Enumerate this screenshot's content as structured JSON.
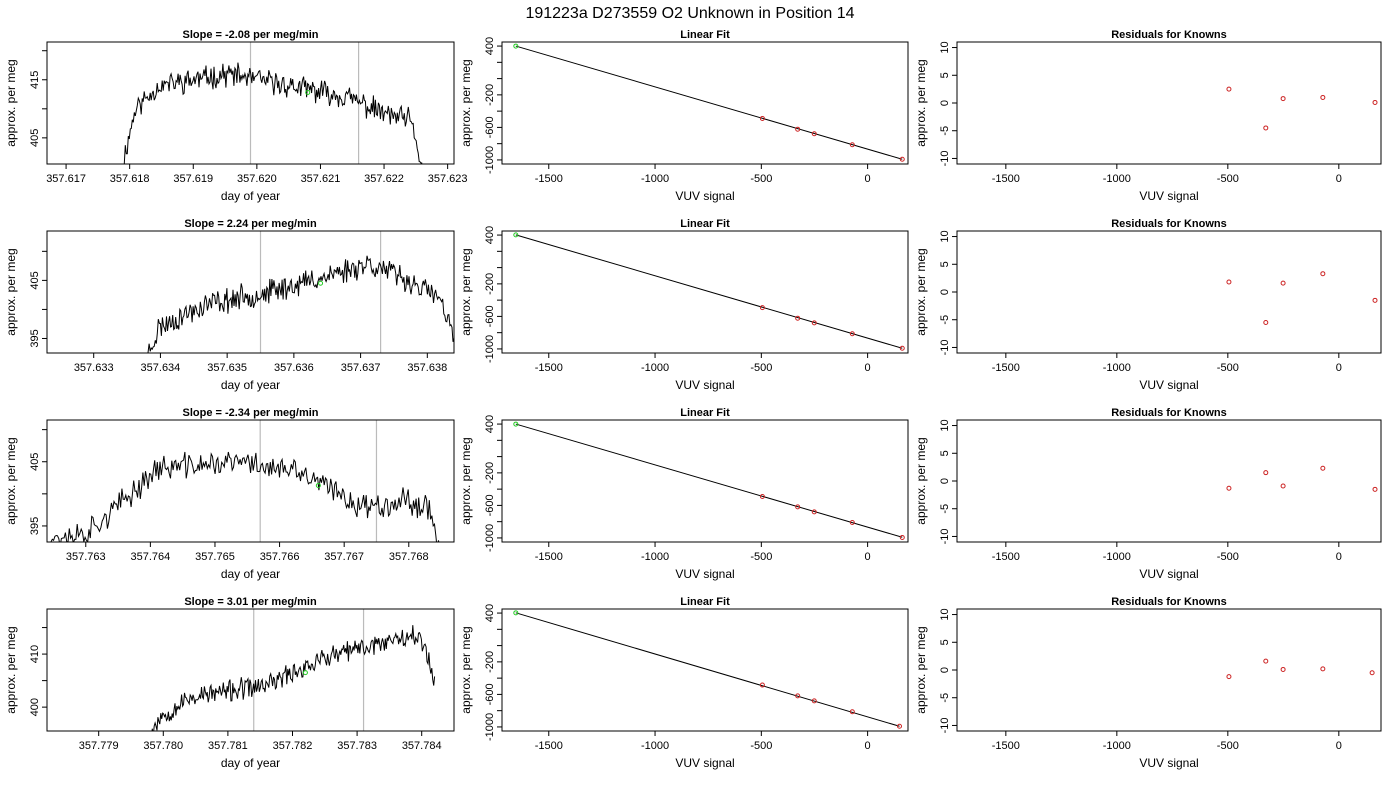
{
  "page_title": "191223a     D273559   O2 Unknown in Position  14",
  "colors": {
    "timeseries_line": "#000000",
    "cursor_lines": "#bbbbbb",
    "known_points": "#cc2222",
    "unknown_point": "#22cc22",
    "fit_line": "#000000"
  },
  "chart_data": [
    {
      "type": "line",
      "title": "Slope =  -2.08  per meg/min",
      "xlabel": "day of year",
      "ylabel": "approx. per meg",
      "xlim": [
        357.6167,
        357.6231
      ],
      "ylim": [
        400.5,
        421.5
      ],
      "xticks": [
        357.617,
        357.618,
        357.619,
        357.62,
        357.621,
        357.622,
        357.623
      ],
      "xtick_labels": [
        "357.617",
        "357.618",
        "357.619",
        "357.620",
        "357.621",
        "357.622",
        "357.623"
      ],
      "yticks": [
        405,
        410,
        415,
        420
      ],
      "ytick_labels": [
        "405",
        "",
        "415",
        ""
      ],
      "vlines": [
        357.6199,
        357.6216
      ],
      "unknown_point": {
        "x": 357.6208,
        "y": 412.8
      },
      "series": [
        {
          "x_start": 357.6179,
          "x_end": 357.6226,
          "profile": [
            [
              0,
              401
            ],
            [
              0.04,
              410
            ],
            [
              0.12,
              414
            ],
            [
              0.35,
              416
            ],
            [
              0.55,
              414
            ],
            [
              0.75,
              412
            ],
            [
              0.88,
              409
            ],
            [
              0.96,
              408
            ],
            [
              1,
              400
            ]
          ],
          "noise": 1.6,
          "seed": 11
        }
      ]
    },
    {
      "type": "scatter",
      "title": "Linear Fit",
      "xlabel": "VUV signal",
      "ylabel": "approx. per meg",
      "xlim": [
        -1720,
        190
      ],
      "ylim": [
        -1050,
        450
      ],
      "xticks": [
        -1500,
        -1000,
        -500,
        0
      ],
      "xtick_labels": [
        "-1500",
        "-1000",
        "-500",
        "0"
      ],
      "yticks": [
        -1000,
        -800,
        -600,
        -400,
        -200,
        0,
        200,
        400
      ],
      "ytick_labels": [
        "-1000",
        "",
        "-600",
        "",
        "-200",
        "",
        "",
        "400"
      ],
      "fit_line": [
        [
          -1655,
          400
        ],
        [
          163,
          -992
        ]
      ],
      "knowns": [
        [
          -495,
          -490
        ],
        [
          -329,
          -622
        ],
        [
          -251,
          -678
        ],
        [
          -72,
          -813
        ],
        [
          163,
          -992
        ]
      ],
      "unknown_point": {
        "x": -1655,
        "y": 400
      }
    },
    {
      "type": "scatter",
      "title": "Residuals for Knowns",
      "xlabel": "VUV signal",
      "ylabel": "approx. per meg",
      "xlim": [
        -1720,
        190
      ],
      "ylim": [
        -11,
        11
      ],
      "xticks": [
        -1500,
        -1000,
        -500,
        0
      ],
      "xtick_labels": [
        "-1500",
        "-1000",
        "-500",
        "0"
      ],
      "yticks": [
        -10,
        -5,
        0,
        5,
        10
      ],
      "ytick_labels": [
        "-10",
        "-5",
        "0",
        "5",
        "10"
      ],
      "residuals": [
        [
          -495,
          2.5
        ],
        [
          -329,
          -4.5
        ],
        [
          -251,
          0.8
        ],
        [
          -72,
          1.0
        ],
        [
          163,
          0.1
        ]
      ]
    },
    {
      "type": "line",
      "title": "Slope =  2.24  per meg/min",
      "xlabel": "day of year",
      "ylabel": "approx. per meg",
      "xlim": [
        357.6323,
        357.6384
      ],
      "ylim": [
        392.5,
        413.5
      ],
      "xticks": [
        357.633,
        357.634,
        357.635,
        357.636,
        357.637,
        357.638
      ],
      "xtick_labels": [
        "357.633",
        "357.634",
        "357.635",
        "357.636",
        "357.637",
        "357.638"
      ],
      "yticks": [
        395,
        400,
        405,
        410
      ],
      "ytick_labels": [
        "395",
        "",
        "405",
        ""
      ],
      "vlines": [
        357.6355,
        357.6373
      ],
      "unknown_point": {
        "x": 357.6364,
        "y": 404.5
      },
      "series": [
        {
          "x_start": 357.6338,
          "x_end": 357.6384,
          "profile": [
            [
              0,
              392
            ],
            [
              0.04,
              397
            ],
            [
              0.2,
              401
            ],
            [
              0.4,
              403
            ],
            [
              0.6,
              406
            ],
            [
              0.72,
              408
            ],
            [
              0.85,
              405
            ],
            [
              0.95,
              402
            ],
            [
              1,
              395
            ]
          ],
          "noise": 1.7,
          "seed": 23
        }
      ]
    },
    {
      "type": "scatter",
      "title": "Linear Fit",
      "xlabel": "VUV signal",
      "ylabel": "approx. per meg",
      "xlim": [
        -1720,
        190
      ],
      "ylim": [
        -1050,
        450
      ],
      "xticks": [
        -1500,
        -1000,
        -500,
        0
      ],
      "xtick_labels": [
        "-1500",
        "-1000",
        "-500",
        "0"
      ],
      "yticks": [
        -1000,
        -800,
        -600,
        -400,
        -200,
        0,
        200,
        400
      ],
      "ytick_labels": [
        "-1000",
        "",
        "-600",
        "",
        "-200",
        "",
        "",
        "400"
      ],
      "fit_line": [
        [
          -1655,
          402
        ],
        [
          163,
          -992
        ]
      ],
      "knowns": [
        [
          -495,
          -492
        ],
        [
          -329,
          -622
        ],
        [
          -251,
          -680
        ],
        [
          -72,
          -813
        ],
        [
          163,
          -992
        ]
      ],
      "unknown_point": {
        "x": -1655,
        "y": 402
      }
    },
    {
      "type": "scatter",
      "title": "Residuals for Knowns",
      "xlabel": "VUV signal",
      "ylabel": "approx. per meg",
      "xlim": [
        -1720,
        190
      ],
      "ylim": [
        -11,
        11
      ],
      "xticks": [
        -1500,
        -1000,
        -500,
        0
      ],
      "xtick_labels": [
        "-1500",
        "-1000",
        "-500",
        "0"
      ],
      "yticks": [
        -10,
        -5,
        0,
        5,
        10
      ],
      "ytick_labels": [
        "-10",
        "-5",
        "0",
        "5",
        "10"
      ],
      "residuals": [
        [
          -495,
          1.8
        ],
        [
          -329,
          -5.5
        ],
        [
          -251,
          1.6
        ],
        [
          -72,
          3.3
        ],
        [
          163,
          -1.5
        ]
      ]
    },
    {
      "type": "line",
      "title": "Slope =  -2.34  per meg/min",
      "xlabel": "day of year",
      "ylabel": "approx. per meg",
      "xlim": [
        357.7624,
        357.7687
      ],
      "ylim": [
        392.5,
        411.5
      ],
      "xticks": [
        357.763,
        357.764,
        357.765,
        357.766,
        357.767,
        357.768
      ],
      "xtick_labels": [
        "357.763",
        "357.764",
        "357.765",
        "357.766",
        "357.767",
        "357.768"
      ],
      "yticks": [
        395,
        400,
        405,
        410
      ],
      "ytick_labels": [
        "395",
        "",
        "405",
        ""
      ],
      "vlines": [
        357.7657,
        357.7675
      ],
      "unknown_point": {
        "x": 357.7666,
        "y": 401.3
      },
      "series": [
        {
          "x_start": 357.7624,
          "x_end": 357.7685,
          "profile": [
            [
              0,
              393
            ],
            [
              0.1,
              394
            ],
            [
              0.18,
              398
            ],
            [
              0.28,
              404
            ],
            [
              0.5,
              405
            ],
            [
              0.65,
              403
            ],
            [
              0.8,
              398
            ],
            [
              0.9,
              399
            ],
            [
              0.97,
              398
            ],
            [
              1,
              391
            ]
          ],
          "noise": 1.6,
          "seed": 37
        }
      ]
    },
    {
      "type": "scatter",
      "title": "Linear Fit",
      "xlabel": "VUV signal",
      "ylabel": "approx. per meg",
      "xlim": [
        -1720,
        190
      ],
      "ylim": [
        -1050,
        450
      ],
      "xticks": [
        -1500,
        -1000,
        -500,
        0
      ],
      "xtick_labels": [
        "-1500",
        "-1000",
        "-500",
        "0"
      ],
      "yticks": [
        -1000,
        -800,
        -600,
        -400,
        -200,
        0,
        200,
        400
      ],
      "ytick_labels": [
        "-1000",
        "",
        "-600",
        "",
        "-200",
        "",
        "",
        "400"
      ],
      "fit_line": [
        [
          -1655,
          400
        ],
        [
          163,
          -992
        ]
      ],
      "knowns": [
        [
          -495,
          -491
        ],
        [
          -329,
          -618
        ],
        [
          -251,
          -680
        ],
        [
          -72,
          -810
        ],
        [
          163,
          -994
        ]
      ],
      "unknown_point": {
        "x": -1655,
        "y": 400
      }
    },
    {
      "type": "scatter",
      "title": "Residuals for Knowns",
      "xlabel": "VUV signal",
      "ylabel": "approx. per meg",
      "xlim": [
        -1720,
        190
      ],
      "ylim": [
        -11,
        11
      ],
      "xticks": [
        -1500,
        -1000,
        -500,
        0
      ],
      "xtick_labels": [
        "-1500",
        "-1000",
        "-500",
        "0"
      ],
      "yticks": [
        -10,
        -5,
        0,
        5,
        10
      ],
      "ytick_labels": [
        "-10",
        "-5",
        "0",
        "5",
        "10"
      ],
      "residuals": [
        [
          -495,
          -1.3
        ],
        [
          -329,
          1.5
        ],
        [
          -251,
          -0.9
        ],
        [
          -72,
          2.3
        ],
        [
          163,
          -1.5
        ]
      ]
    },
    {
      "type": "line",
      "title": "Slope =  3.01  per meg/min",
      "xlabel": "day of year",
      "ylabel": "approx. per meg",
      "xlim": [
        357.7782,
        357.7845
      ],
      "ylim": [
        395.5,
        418.5
      ],
      "xticks": [
        357.779,
        357.78,
        357.781,
        357.782,
        357.783,
        357.784
      ],
      "xtick_labels": [
        "357.779",
        "357.780",
        "357.781",
        "357.782",
        "357.783",
        "357.784"
      ],
      "yticks": [
        400,
        405,
        410,
        415
      ],
      "ytick_labels": [
        "400",
        "",
        "410",
        ""
      ],
      "vlines": [
        357.7814,
        357.7831
      ],
      "unknown_point": {
        "x": 357.7822,
        "y": 406.5
      },
      "series": [
        {
          "x_start": 357.7798,
          "x_end": 357.7842,
          "profile": [
            [
              0,
              395
            ],
            [
              0.03,
              398
            ],
            [
              0.15,
              402
            ],
            [
              0.4,
              404
            ],
            [
              0.6,
              409
            ],
            [
              0.8,
              412
            ],
            [
              0.92,
              414
            ],
            [
              0.97,
              411
            ],
            [
              1,
              405
            ]
          ],
          "noise": 1.6,
          "seed": 53
        }
      ]
    },
    {
      "type": "scatter",
      "title": "Linear Fit",
      "xlabel": "VUV signal",
      "ylabel": "approx. per meg",
      "xlim": [
        -1720,
        190
      ],
      "ylim": [
        -1050,
        450
      ],
      "xticks": [
        -1500,
        -1000,
        -500,
        0
      ],
      "xtick_labels": [
        "-1500",
        "-1000",
        "-500",
        "0"
      ],
      "yticks": [
        -1000,
        -800,
        -600,
        -400,
        -200,
        0,
        200,
        400
      ],
      "ytick_labels": [
        "-1000",
        "",
        "-600",
        "",
        "-200",
        "",
        "",
        "400"
      ],
      "fit_line": [
        [
          -1655,
          403
        ],
        [
          150,
          -992
        ]
      ],
      "knowns": [
        [
          -495,
          -485
        ],
        [
          -329,
          -618
        ],
        [
          -251,
          -680
        ],
        [
          -72,
          -813
        ],
        [
          150,
          -992
        ]
      ],
      "unknown_point": {
        "x": -1655,
        "y": 403
      }
    },
    {
      "type": "scatter",
      "title": "Residuals for Knowns",
      "xlabel": "VUV signal",
      "ylabel": "approx. per meg",
      "xlim": [
        -1720,
        190
      ],
      "ylim": [
        -11,
        11
      ],
      "xticks": [
        -1500,
        -1000,
        -500,
        0
      ],
      "xtick_labels": [
        "-1500",
        "-1000",
        "-500",
        "0"
      ],
      "yticks": [
        -10,
        -5,
        0,
        5,
        10
      ],
      "ytick_labels": [
        "-10",
        "-5",
        "0",
        "5",
        "10"
      ],
      "residuals": [
        [
          -495,
          -1.2
        ],
        [
          -329,
          1.6
        ],
        [
          -251,
          0.1
        ],
        [
          -72,
          0.2
        ],
        [
          150,
          -0.5
        ]
      ]
    }
  ]
}
